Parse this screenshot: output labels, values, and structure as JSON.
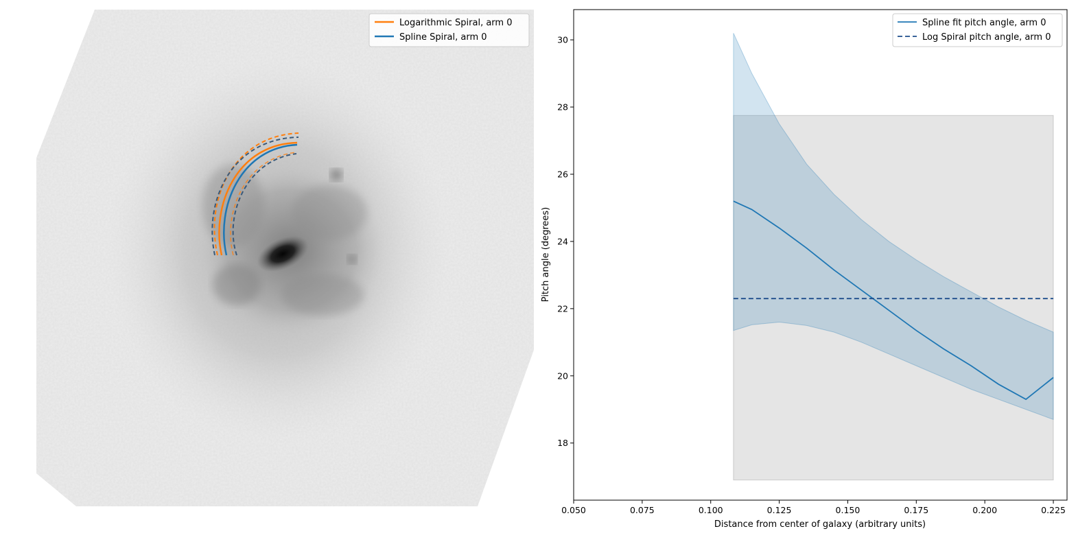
{
  "chart_data": [
    {
      "type": "image",
      "legend_position": "upper-right",
      "grid": false,
      "series": [
        {
          "name": "Logarithmic Spiral, arm 0",
          "color": "#ff7f0e",
          "style": "solid"
        },
        {
          "name": "Spline Spiral, arm 0",
          "color": "#1f77b4",
          "style": "solid"
        }
      ]
    },
    {
      "type": "line",
      "xlabel": "Distance from center of galaxy (arbitrary units)",
      "ylabel": "Pitch angle (degrees)",
      "xlim": [
        0.05,
        0.23
      ],
      "ylim": [
        16.3,
        30.9
      ],
      "xticks": [
        0.05,
        0.075,
        0.1,
        0.125,
        0.15,
        0.175,
        0.2,
        0.225
      ],
      "xtick_labels": [
        "0.050",
        "0.075",
        "0.100",
        "0.125",
        "0.150",
        "0.175",
        "0.200",
        "0.225"
      ],
      "yticks": [
        18,
        20,
        22,
        24,
        26,
        28,
        30
      ],
      "ytick_labels": [
        "18",
        "20",
        "22",
        "24",
        "26",
        "28",
        "30"
      ],
      "legend_position": "upper-right",
      "grid": false,
      "series": [
        {
          "name": "Spline fit pitch angle, arm 0",
          "color": "#1f77b4",
          "style": "solid",
          "x": [
            0.1083,
            0.115,
            0.125,
            0.135,
            0.145,
            0.155,
            0.165,
            0.175,
            0.185,
            0.195,
            0.205,
            0.215,
            0.225
          ],
          "y": [
            25.2,
            24.95,
            24.4,
            23.8,
            23.15,
            22.55,
            21.95,
            21.35,
            20.8,
            20.3,
            19.75,
            19.3,
            19.95
          ],
          "band_upper": [
            30.2,
            29.0,
            27.5,
            26.3,
            25.4,
            24.65,
            24.0,
            23.45,
            22.95,
            22.5,
            22.05,
            21.65,
            21.3
          ],
          "band_lower": [
            21.35,
            21.52,
            21.6,
            21.5,
            21.3,
            21.0,
            20.65,
            20.3,
            19.95,
            19.6,
            19.3,
            19.0,
            18.7
          ],
          "band_color": "#1f77b4"
        },
        {
          "name": "Log Spiral pitch angle, arm 0",
          "color": "#1f4e8c",
          "style": "dashed",
          "x": [
            0.1083,
            0.225
          ],
          "y": [
            22.3,
            22.3
          ],
          "band_x": [
            0.1083,
            0.225
          ],
          "band_upper": 27.75,
          "band_lower": 16.9,
          "band_color": "#888888"
        }
      ]
    }
  ]
}
